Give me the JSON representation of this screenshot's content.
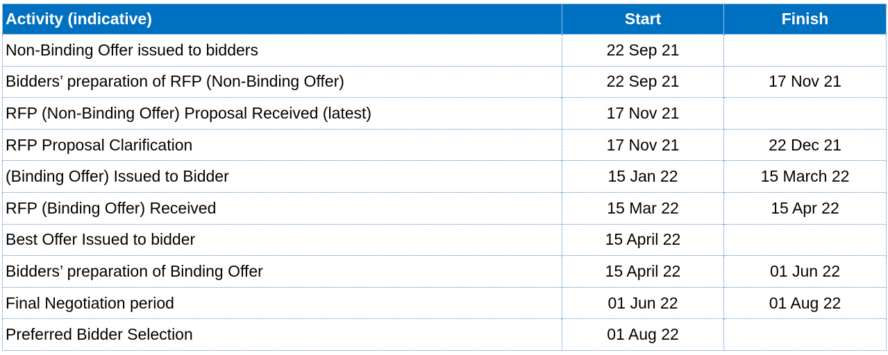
{
  "table": {
    "headers": [
      "Activity (indicative)",
      "Start",
      "Finish"
    ],
    "rows": [
      {
        "activity": "Non-Binding Offer issued to bidders",
        "start": "22 Sep 21",
        "finish": ""
      },
      {
        "activity": "Bidders’ preparation of RFP (Non-Binding Offer)",
        "start": "22 Sep 21",
        "finish": "17 Nov 21"
      },
      {
        "activity": "RFP (Non-Binding Offer) Proposal Received (latest)",
        "start": "17 Nov 21",
        "finish": ""
      },
      {
        "activity": "RFP Proposal Clarification",
        "start": "17 Nov 21",
        "finish": "22 Dec 21"
      },
      {
        "activity": "(Binding Offer) Issued to Bidder",
        "start": "15 Jan 22",
        "finish": "15 March 22"
      },
      {
        "activity": "RFP (Binding Offer) Received",
        "start": "15 Mar 22",
        "finish": "15 Apr 22"
      },
      {
        "activity": "Best Offer Issued to bidder",
        "start": "15 April 22",
        "finish": ""
      },
      {
        "activity": "Bidders’ preparation of Binding Offer",
        "start": "15 April 22",
        "finish": "01 Jun 22"
      },
      {
        "activity": "Final Negotiation period",
        "start": "01 Jun 22",
        "finish": "01 Aug 22"
      },
      {
        "activity": "Preferred Bidder Selection",
        "start": "01 Aug 22",
        "finish": ""
      }
    ]
  },
  "colors": {
    "header_bg": "#0070c0",
    "header_text": "#ffffff",
    "border": "#4a86c5"
  }
}
